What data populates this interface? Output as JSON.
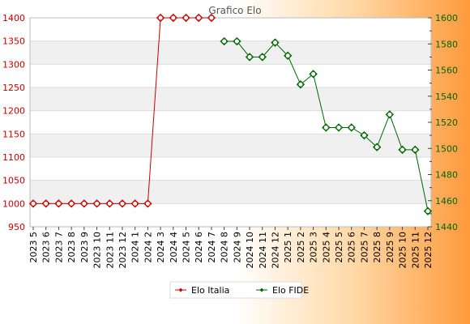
{
  "chart_data": {
    "type": "line",
    "title": "Grafico Elo",
    "categories": [
      "2023 5",
      "2023 6",
      "2023 7",
      "2023 8",
      "2023 9",
      "2023 10",
      "2023 11",
      "2023 12",
      "2024 1",
      "2024 2",
      "2024 3",
      "2024 4",
      "2024 5",
      "2024 6",
      "2024 7",
      "2024 8",
      "2024 9",
      "2024 10",
      "2024 11",
      "2024 12",
      "2025 1",
      "2025 2",
      "2025 3",
      "2025 4",
      "2025 5",
      "2025 6",
      "2025 7",
      "2025 8",
      "2025 9",
      "2025 10",
      "2025 11",
      "2025 12"
    ],
    "y_left": {
      "min": 950,
      "max": 1400,
      "ticks": [
        950,
        1000,
        1050,
        1100,
        1150,
        1200,
        1250,
        1300,
        1350,
        1400
      ],
      "color": "#cc0000"
    },
    "y_right": {
      "min": 1440,
      "max": 1600,
      "ticks": [
        1440,
        1460,
        1480,
        1500,
        1520,
        1540,
        1560,
        1580,
        1600
      ],
      "color": "#006600"
    },
    "grid": true,
    "legend_position": "bottom",
    "series": [
      {
        "name": "Elo Italia",
        "axis": "left",
        "color": "#cc0000",
        "values": [
          1000,
          1000,
          1000,
          1000,
          1000,
          1000,
          1000,
          1000,
          1000,
          1000,
          1400,
          1400,
          1400,
          1400,
          1400,
          null,
          null,
          null,
          null,
          null,
          null,
          null,
          null,
          null,
          null,
          null,
          null,
          null,
          null,
          null,
          null,
          null
        ]
      },
      {
        "name": "Elo FIDE",
        "axis": "right",
        "color": "#006600",
        "values": [
          null,
          null,
          null,
          null,
          null,
          null,
          null,
          null,
          null,
          null,
          null,
          null,
          null,
          null,
          null,
          1582,
          1582,
          1570,
          1570,
          1581,
          1571,
          1549,
          1557,
          1516,
          1516,
          1516,
          1510,
          1501,
          1526,
          1499,
          1499,
          1452
        ]
      }
    ]
  }
}
